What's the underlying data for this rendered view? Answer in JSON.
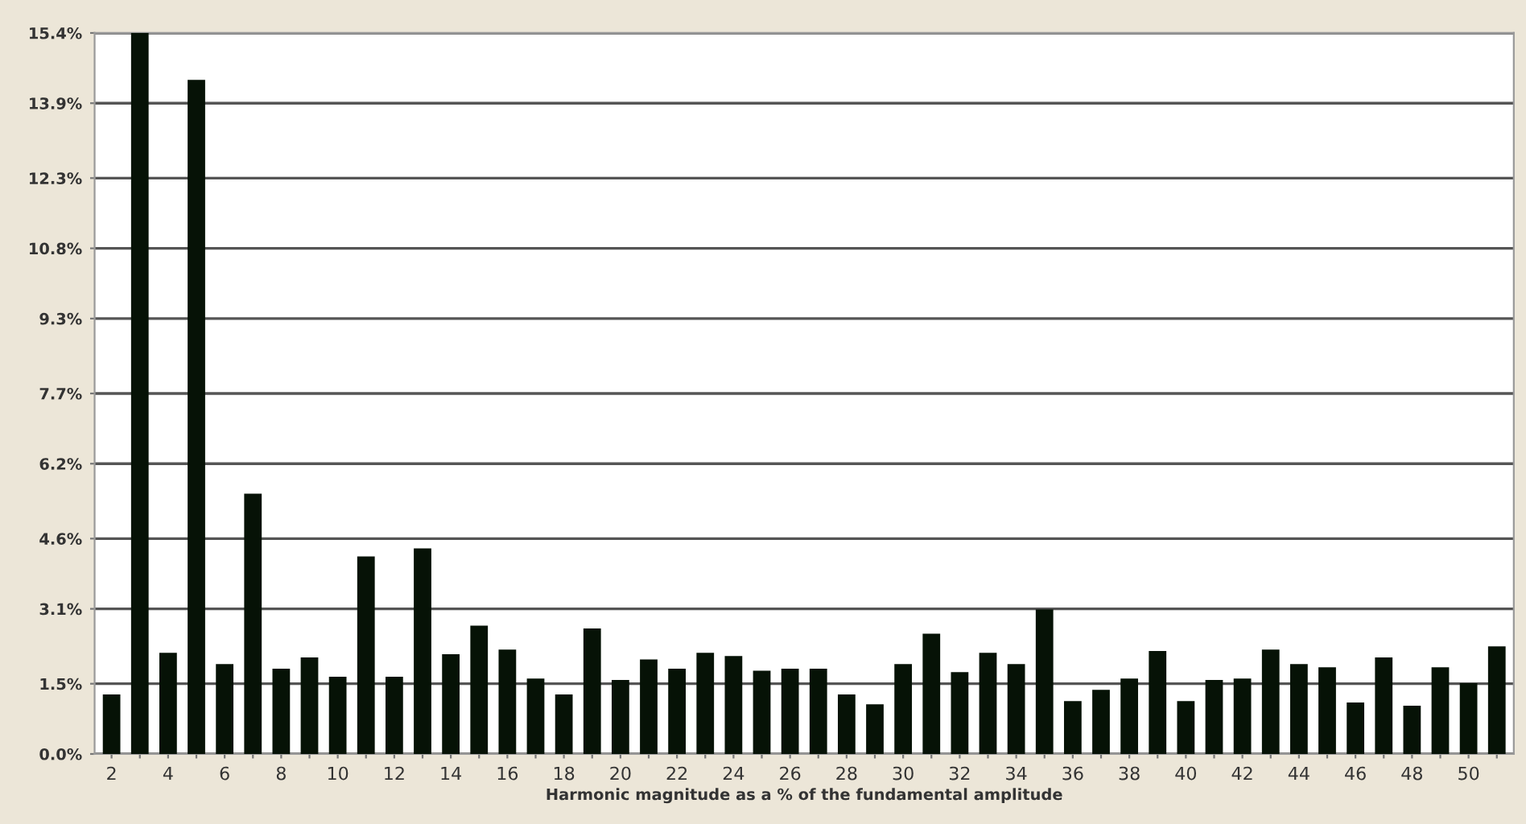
{
  "chart_data": {
    "type": "bar",
    "xlabel": "Harmonic magnitude as a % of the fundamental amplitude",
    "categories": [
      "2",
      null,
      "4",
      null,
      "6",
      null,
      "8",
      null,
      "10",
      null,
      "12",
      null,
      "14",
      null,
      "16",
      null,
      "18",
      null,
      "20",
      null,
      "22",
      null,
      "24",
      null,
      "26",
      null,
      "28",
      null,
      "30",
      null,
      "32",
      null,
      "34",
      null,
      "36",
      null,
      "38",
      null,
      "40",
      null,
      "42",
      null,
      "44",
      null,
      "46",
      null,
      "48",
      null,
      "50",
      null
    ],
    "values": [
      1.27,
      15.4,
      2.16,
      14.4,
      1.92,
      5.56,
      1.82,
      2.06,
      1.65,
      4.22,
      1.65,
      4.39,
      2.13,
      2.74,
      2.23,
      1.61,
      1.27,
      2.68,
      1.58,
      2.02,
      1.82,
      2.16,
      2.09,
      1.78,
      1.82,
      1.82,
      1.27,
      1.06,
      1.92,
      2.57,
      1.75,
      2.16,
      1.92,
      3.09,
      1.13,
      1.37,
      1.61,
      2.2,
      1.13,
      1.58,
      1.61,
      2.23,
      1.92,
      1.85,
      1.1,
      2.06,
      1.03,
      1.85,
      1.51,
      2.3
    ],
    "color": "#061206",
    "ylim": [
      0,
      15.4
    ],
    "yticks": [
      {
        "value": 0,
        "label": "0.0%"
      },
      {
        "value": 1.5,
        "label": "1.5%"
      },
      {
        "value": 3.1,
        "label": "3.1%"
      },
      {
        "value": 4.6,
        "label": "4.6%"
      },
      {
        "value": 6.2,
        "label": "6.2%"
      },
      {
        "value": 7.7,
        "label": "7.7%"
      },
      {
        "value": 9.3,
        "label": "9.3%"
      },
      {
        "value": 10.8,
        "label": "10.8%"
      },
      {
        "value": 12.3,
        "label": "12.3%"
      },
      {
        "value": 13.9,
        "label": "13.9%"
      },
      {
        "value": 15.4,
        "label": "15.4%"
      }
    ],
    "grid": "y"
  }
}
